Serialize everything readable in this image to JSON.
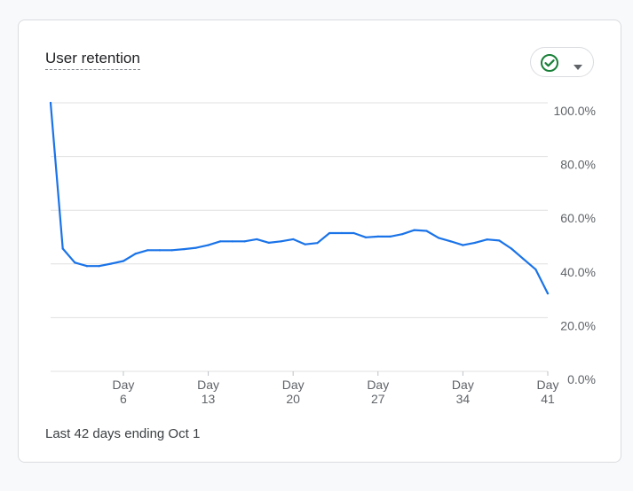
{
  "card": {
    "title": "User retention",
    "footer": "Last 42 days ending Oct 1"
  },
  "status": {
    "icon": "check-circle-icon",
    "dropdown_icon": "caret-down-icon",
    "accent": "#188038"
  },
  "colors": {
    "line": "#1a73e8",
    "grid": "#e0e0e0"
  },
  "chart_data": {
    "type": "line",
    "title": "User retention",
    "xlabel": "",
    "ylabel": "",
    "ylim": [
      0,
      100
    ],
    "yticks": [
      "100.0%",
      "80.0%",
      "60.0%",
      "40.0%",
      "20.0%",
      "0.0%"
    ],
    "xticks": [
      {
        "day": 6,
        "line1": "Day",
        "line2": "6"
      },
      {
        "day": 13,
        "line1": "Day",
        "line2": "13"
      },
      {
        "day": 20,
        "line1": "Day",
        "line2": "20"
      },
      {
        "day": 27,
        "line1": "Day",
        "line2": "27"
      },
      {
        "day": 34,
        "line1": "Day",
        "line2": "34"
      },
      {
        "day": 41,
        "line1": "Day",
        "line2": "41"
      }
    ],
    "x": [
      0,
      1,
      2,
      3,
      4,
      5,
      6,
      7,
      8,
      9,
      10,
      11,
      12,
      13,
      14,
      15,
      16,
      17,
      18,
      19,
      20,
      21,
      22,
      23,
      24,
      25,
      26,
      27,
      28,
      29,
      30,
      31,
      32,
      33,
      34,
      35,
      36,
      37,
      38,
      39,
      40,
      41
    ],
    "series": [
      {
        "values": [
          100.0,
          45.7,
          40.5,
          39.2,
          39.2,
          40.1,
          41.1,
          43.8,
          45.1,
          45.1,
          45.1,
          45.5,
          46.0,
          47.0,
          48.4,
          48.4,
          48.4,
          49.2,
          47.9,
          48.4,
          49.2,
          47.3,
          47.8,
          51.5,
          51.5,
          51.5,
          49.9,
          50.2,
          50.2,
          51.1,
          52.6,
          52.3,
          49.7,
          48.4,
          47.0,
          47.9,
          49.1,
          48.7,
          45.7,
          41.8,
          38.0,
          29.0
        ]
      }
    ]
  }
}
